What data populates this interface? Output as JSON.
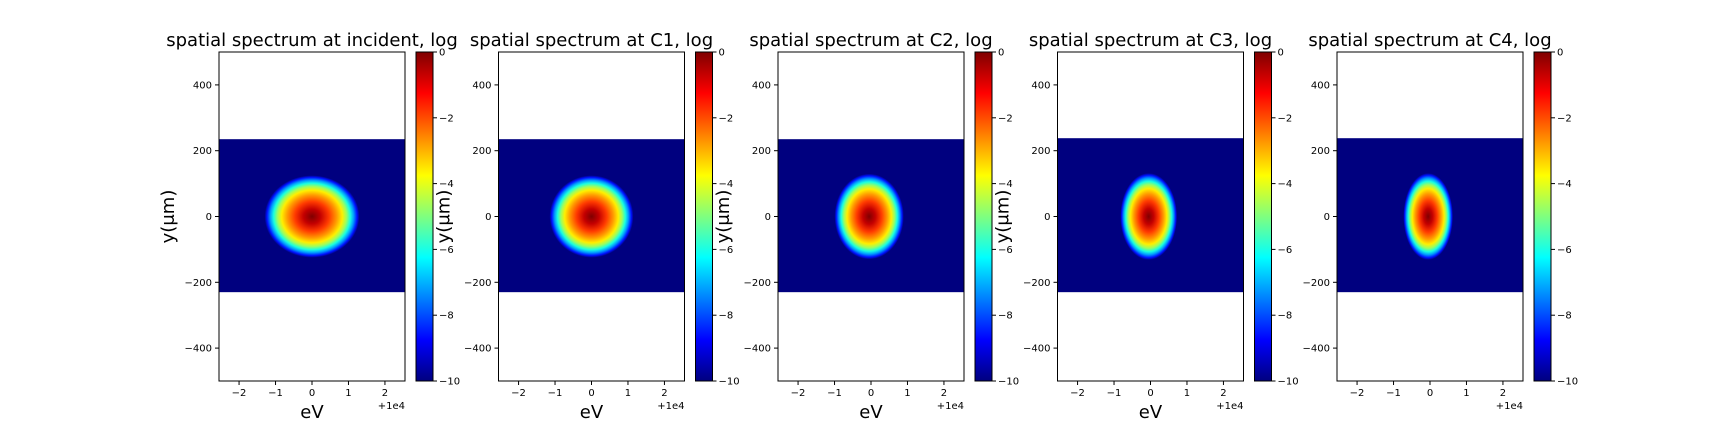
{
  "figure": {
    "colorscale": [
      "#00007f",
      "#0000ff",
      "#007fff",
      "#00ffff",
      "#7fff7f",
      "#ffff00",
      "#ff7f00",
      "#ff0000",
      "#7f0000"
    ],
    "background": "#ffffff",
    "data_fill": "#00007f"
  },
  "chart_data": [
    {
      "type": "heatmap",
      "title": "spatial spectrum at incident, log",
      "xlabel": "eV",
      "ylabel": "y(μm)",
      "x_offset_label": "+1e4",
      "xlim": [
        -2.55,
        2.55
      ],
      "ylim": [
        -500,
        500
      ],
      "xticks": [
        -2,
        -1,
        0,
        1,
        2
      ],
      "yticks": [
        400,
        200,
        0,
        -200,
        -400
      ],
      "data_y_range": [
        -230,
        235
      ],
      "colorbar": {
        "vmin": -10,
        "vmax": 0,
        "ticks": [
          0,
          -2,
          -4,
          -6,
          -8,
          -10
        ]
      },
      "blob": {
        "center_x": 0.0,
        "center_y": 0,
        "half_width_x": 1.3,
        "half_width_y": 125
      },
      "show_ylabel": true
    },
    {
      "type": "heatmap",
      "title": "spatial spectrum at C1, log",
      "xlabel": "eV",
      "ylabel": "y(μm)",
      "x_offset_label": "+1e4",
      "xlim": [
        -2.55,
        2.55
      ],
      "ylim": [
        -500,
        500
      ],
      "xticks": [
        -2,
        -1,
        0,
        1,
        2
      ],
      "yticks": [
        400,
        200,
        0,
        -200,
        -400
      ],
      "data_y_range": [
        -230,
        235
      ],
      "colorbar": {
        "vmin": -10,
        "vmax": 0,
        "ticks": [
          0,
          -2,
          -4,
          -6,
          -8,
          -10
        ]
      },
      "blob": {
        "center_x": 0.0,
        "center_y": 0,
        "half_width_x": 1.15,
        "half_width_y": 125
      },
      "show_ylabel": true
    },
    {
      "type": "heatmap",
      "title": "spatial spectrum at C2, log",
      "xlabel": "eV",
      "ylabel": "y(μm)",
      "x_offset_label": "+1e4",
      "xlim": [
        -2.55,
        2.55
      ],
      "ylim": [
        -500,
        500
      ],
      "xticks": [
        -2,
        -1,
        0,
        1,
        2
      ],
      "yticks": [
        400,
        200,
        0,
        -200,
        -400
      ],
      "data_y_range": [
        -230,
        235
      ],
      "colorbar": {
        "vmin": -10,
        "vmax": 0,
        "ticks": [
          0,
          -2,
          -4,
          -6,
          -8,
          -10
        ]
      },
      "blob": {
        "center_x": -0.05,
        "center_y": 0,
        "half_width_x": 0.95,
        "half_width_y": 130
      },
      "show_ylabel": true
    },
    {
      "type": "heatmap",
      "title": "spatial spectrum at C3, log",
      "xlabel": "eV",
      "ylabel": "y(μm)",
      "x_offset_label": "+1e4",
      "xlim": [
        -2.55,
        2.55
      ],
      "ylim": [
        -500,
        500
      ],
      "xticks": [
        -2,
        -1,
        0,
        1,
        2
      ],
      "yticks": [
        400,
        200,
        0,
        -200,
        -400
      ],
      "data_y_range": [
        -230,
        238
      ],
      "colorbar": {
        "vmin": -10,
        "vmax": 0,
        "ticks": [
          0,
          -2,
          -4,
          -6,
          -8,
          -10
        ]
      },
      "blob": {
        "center_x": -0.05,
        "center_y": 0,
        "half_width_x": 0.78,
        "half_width_y": 132
      },
      "show_ylabel": true
    },
    {
      "type": "heatmap",
      "title": "spatial spectrum at C4, log",
      "xlabel": "",
      "ylabel": "",
      "x_offset_label": "+1e4",
      "xlim": [
        -2.55,
        2.55
      ],
      "ylim": [
        -500,
        500
      ],
      "xticks": [
        -2,
        -1,
        0,
        1,
        2
      ],
      "yticks": [
        400,
        200,
        0,
        -200,
        -400
      ],
      "data_y_range": [
        -230,
        238
      ],
      "colorbar": {
        "vmin": -10,
        "vmax": 0,
        "ticks": [
          0,
          -2,
          -4,
          -6,
          -8,
          -10
        ]
      },
      "blob": {
        "center_x": -0.05,
        "center_y": 0,
        "half_width_x": 0.68,
        "half_width_y": 132
      },
      "show_ylabel": false
    }
  ]
}
